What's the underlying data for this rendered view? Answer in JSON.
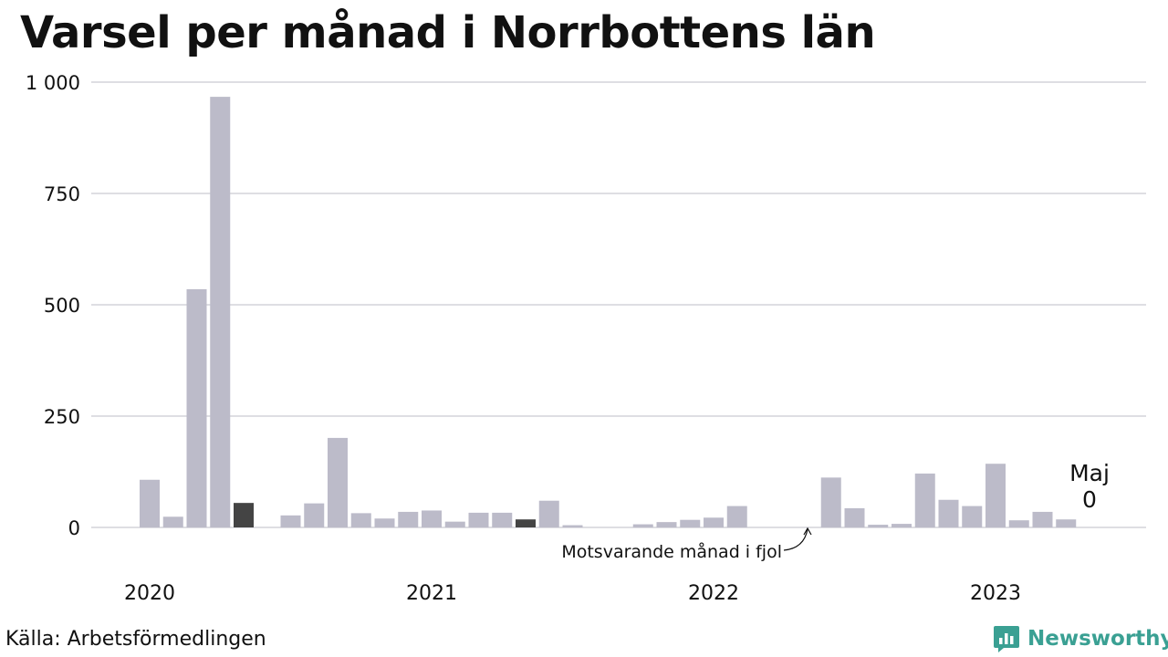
{
  "title": "Varsel per månad i Norrbottens län",
  "source": "Källa: Arbetsförmedlingen",
  "brand": "Newsworthy",
  "colors": {
    "bar": "#bcbbc9",
    "highlight": "#444444",
    "grid": "#dedee3",
    "brand": "#3aa093"
  },
  "chart_data": {
    "type": "bar",
    "ylim": [
      0,
      1000
    ],
    "yticks": [
      0,
      250,
      500,
      750,
      1000
    ],
    "ytick_labels": [
      "0",
      "250",
      "500",
      "750",
      "1 000"
    ],
    "year_labels": [
      {
        "label": "2020",
        "index": 0
      },
      {
        "label": "2021",
        "index": 12
      },
      {
        "label": "2022",
        "index": 24
      },
      {
        "label": "2023",
        "index": 36
      }
    ],
    "categories": [
      "2020-01",
      "2020-02",
      "2020-03",
      "2020-04",
      "2020-05",
      "2020-06",
      "2020-07",
      "2020-08",
      "2020-09",
      "2020-10",
      "2020-11",
      "2020-12",
      "2021-01",
      "2021-02",
      "2021-03",
      "2021-04",
      "2021-05",
      "2021-06",
      "2021-07",
      "2021-08",
      "2021-09",
      "2021-10",
      "2021-11",
      "2021-12",
      "2022-01",
      "2022-02",
      "2022-03",
      "2022-04",
      "2022-05",
      "2022-06",
      "2022-07",
      "2022-08",
      "2022-09",
      "2022-10",
      "2022-11",
      "2022-12",
      "2023-01",
      "2023-02",
      "2023-03",
      "2023-04",
      "2023-05"
    ],
    "values": [
      107,
      24,
      535,
      967,
      55,
      0,
      27,
      54,
      201,
      32,
      20,
      35,
      38,
      13,
      33,
      33,
      18,
      60,
      5,
      0,
      0,
      7,
      12,
      17,
      22,
      48,
      0,
      0,
      0,
      112,
      43,
      6,
      8,
      121,
      62,
      48,
      143,
      16,
      35,
      18,
      0
    ],
    "highlight_indices": [
      4,
      16
    ],
    "annotations": {
      "last_label": "Maj",
      "last_value": "0",
      "previous_year_note": "Motsvarande månad i fjol"
    }
  }
}
